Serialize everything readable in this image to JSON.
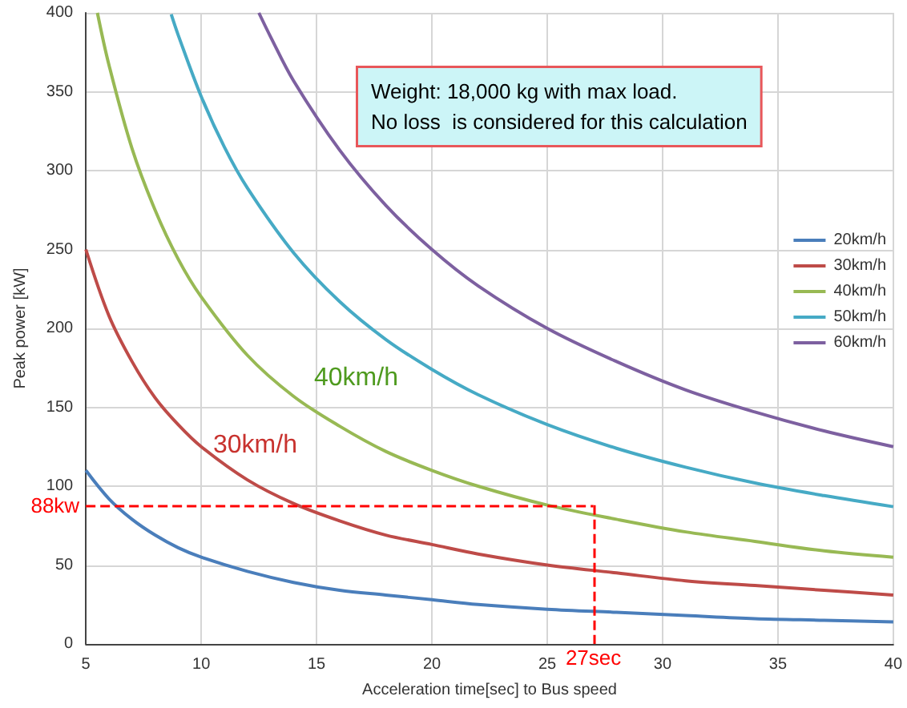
{
  "chart_data": {
    "type": "line",
    "xlabel": "Acceleration time[sec] to Bus speed",
    "ylabel": "Peak power [kW]",
    "xlim": [
      5,
      40
    ],
    "xticks": [
      5,
      10,
      15,
      20,
      25,
      30,
      35,
      40
    ],
    "ylim": [
      0,
      400
    ],
    "yticks": [
      0,
      50,
      100,
      150,
      200,
      250,
      300,
      350,
      400
    ],
    "grid": true,
    "legend": "right",
    "marker": "none",
    "line_style": "solid",
    "series": [
      {
        "name": "20km/h",
        "color": "#4a7ebb",
        "x": [
          5,
          6,
          7,
          8,
          9,
          10,
          12,
          14,
          16,
          18,
          20,
          22,
          25,
          28,
          31,
          34,
          37,
          40
        ],
        "values": [
          110,
          92,
          79,
          69,
          61,
          55,
          46,
          39,
          34,
          31,
          28,
          25,
          22,
          20,
          18,
          16,
          15,
          14
        ]
      },
      {
        "name": "30km/h",
        "color": "#be4b48",
        "x": [
          5,
          6,
          7,
          8,
          9,
          10,
          12,
          14,
          16,
          18,
          20,
          22,
          25,
          28,
          31,
          34,
          37,
          40
        ],
        "values": [
          250,
          208,
          179,
          156,
          139,
          125,
          104,
          89,
          78,
          69,
          63,
          57,
          50,
          45,
          40,
          37,
          34,
          31
        ]
      },
      {
        "name": "40km/h",
        "color": "#98b954",
        "x": [
          5.5,
          6,
          7,
          8,
          9,
          10,
          12,
          14,
          16,
          18,
          20,
          22,
          25,
          28,
          31,
          34,
          37,
          40
        ],
        "values": [
          400,
          367,
          314,
          275,
          244,
          220,
          183,
          157,
          138,
          122,
          110,
          100,
          88,
          79,
          71,
          65,
          59,
          55
        ]
      },
      {
        "name": "50km/h",
        "color": "#46aac5",
        "x": [
          8.7,
          9,
          10,
          11,
          12,
          14,
          16,
          18,
          20,
          22,
          25,
          28,
          31,
          34,
          37,
          40
        ],
        "values": [
          399,
          386,
          347,
          315,
          289,
          248,
          217,
          193,
          174,
          158,
          139,
          124,
          112,
          102,
          94,
          87
        ]
      },
      {
        "name": "60km/h",
        "color": "#7d60a0",
        "x": [
          12.5,
          13,
          14,
          16,
          18,
          20,
          22,
          25,
          28,
          31,
          34,
          37,
          40
        ],
        "values": [
          400,
          385,
          357,
          313,
          278,
          250,
          227,
          200,
          179,
          161,
          147,
          135,
          125
        ]
      }
    ],
    "ref_lines": [
      {
        "axis": "y",
        "value": 88,
        "label": "88kw",
        "color": "#ff0000",
        "line_style": "dashed"
      },
      {
        "axis": "x",
        "value": 27,
        "label": "27sec",
        "color": "#ff0000",
        "line_style": "dashed"
      }
    ],
    "annotations": [
      "Weight: 18,000 kg with max load.\nNo loss  is considered for this calculation",
      "40km/h",
      "30km/h"
    ]
  }
}
